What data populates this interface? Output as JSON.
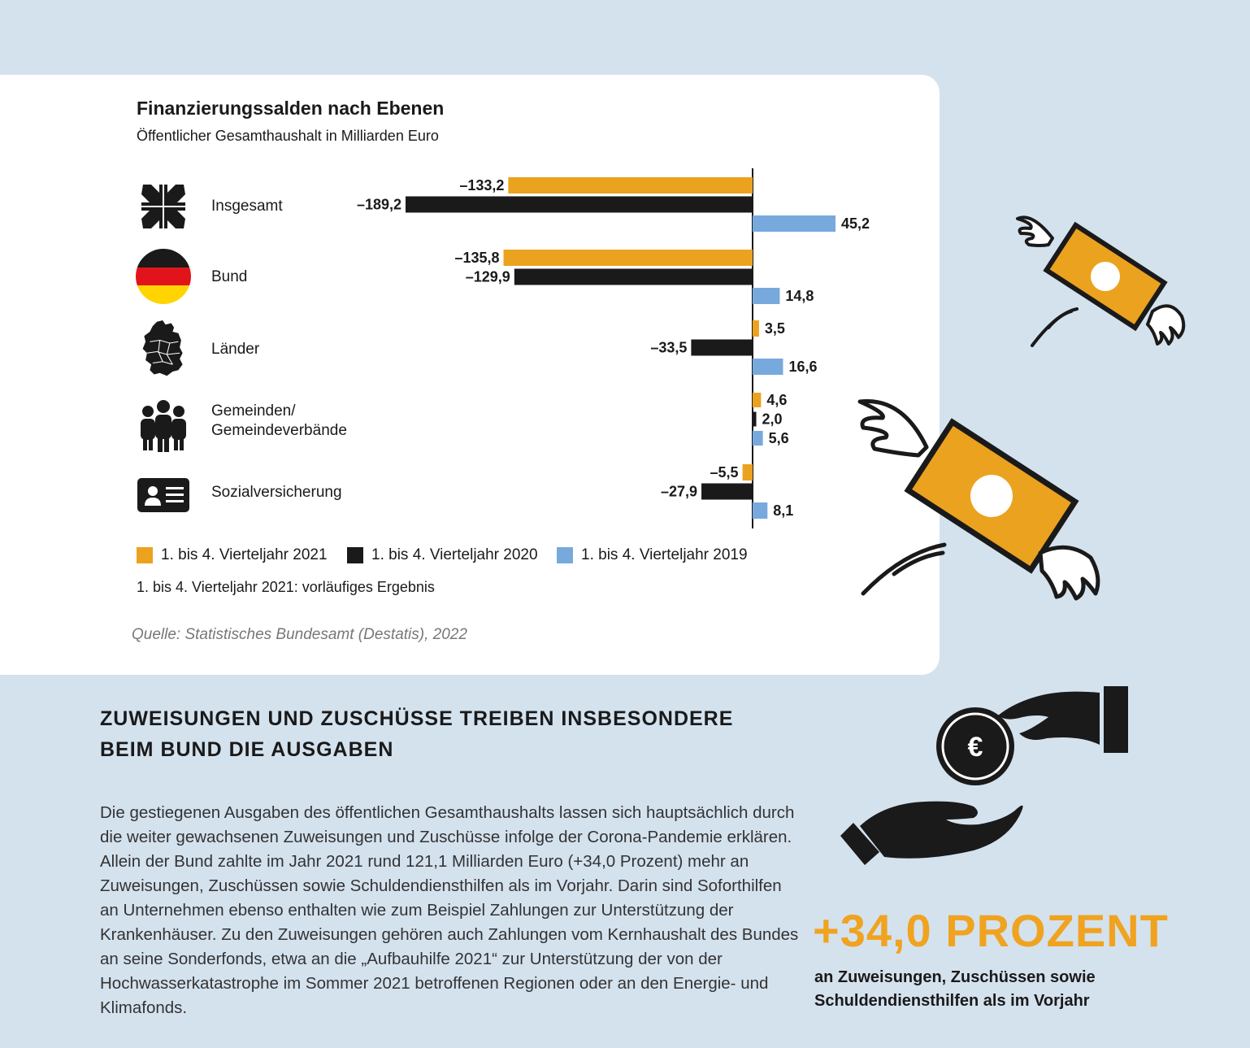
{
  "colors": {
    "y2021": "#eba21f",
    "y2020": "#1a1a1a",
    "y2019": "#78a9dd",
    "accent": "#f0a320",
    "background": "#d4e2ee"
  },
  "title": "Finanzierungssalden nach Ebenen",
  "subtitle": "Öffentlicher Gesamthaushalt in Milliarden Euro",
  "chart_data": {
    "type": "bar",
    "orientation": "horizontal",
    "categories": [
      "Insgesamt",
      "Bund",
      "Länder",
      "Gemeinden/\nGemeindeverbände",
      "Sozialversicherung"
    ],
    "category_icons": [
      "arrows-inward-icon",
      "german-flag-icon",
      "germany-map-icon",
      "people-group-icon",
      "id-card-icon"
    ],
    "series": [
      {
        "name": "1. bis 4. Vierteljahr 2021",
        "color": "#eba21f",
        "values": [
          -133.2,
          -135.8,
          3.5,
          4.6,
          -5.5
        ],
        "labels": [
          "–133,2",
          "–135,8",
          "3,5",
          "4,6",
          "–5,5"
        ]
      },
      {
        "name": "1. bis 4. Vierteljahr 2020",
        "color": "#1a1a1a",
        "values": [
          -189.2,
          -129.9,
          -33.5,
          2.0,
          -27.9
        ],
        "labels": [
          "–189,2",
          "–129,9",
          "–33,5",
          "2,0",
          "–27,9"
        ]
      },
      {
        "name": "1. bis 4. Vierteljahr 2019",
        "color": "#78a9dd",
        "values": [
          45.2,
          14.8,
          16.6,
          5.6,
          8.1
        ],
        "labels": [
          "45,2",
          "14,8",
          "16,6",
          "5,6",
          "8,1"
        ]
      }
    ],
    "legend_position": "bottom"
  },
  "note": "1. bis 4. Vierteljahr 2021: vorläufiges Ergebnis",
  "source": "Quelle: Statistisches Bundesamt (Destatis), 2022",
  "heading": "ZUWEISUNGEN UND ZUSCHÜSSE TREIBEN INSBESONDERE BEIM BUND DIE AUSGABEN",
  "body": "Die gestiegenen Ausgaben des öffentlichen Gesamthaushalts lassen sich hauptsächlich durch die weiter gewachsenen Zuweisungen und Zuschüsse infolge der Corona-Pandemie erklären. Allein der Bund zahlte im Jahr 2021 rund 121,1 Milliarden Euro (+34,0 Prozent) mehr an Zuweisungen, Zuschüssen sowie Schuldendiensthilfen als im Vorjahr. Darin sind Soforthilfen an Unternehmen ebenso enthalten wie zum Beispiel Zahlungen zur Unterstützung der Krankenhäuser. Zu den Zuweisungen gehören auch Zahlungen vom Kernhaushalt des Bundes an seine Sonderfonds, etwa an die „Aufbauhilfe 2021“ zur Unterstützung der von der Hochwasserkatastrophe im Sommer 2021 betroffenen Regionen oder an den Energie- und Klimafonds.",
  "highlight": {
    "value": "+34,0 PROZENT",
    "caption": "an Zuweisungen, Zuschüssen sowie Schuldendiensthilfen als im Vorjahr"
  },
  "coin_symbol": "€"
}
